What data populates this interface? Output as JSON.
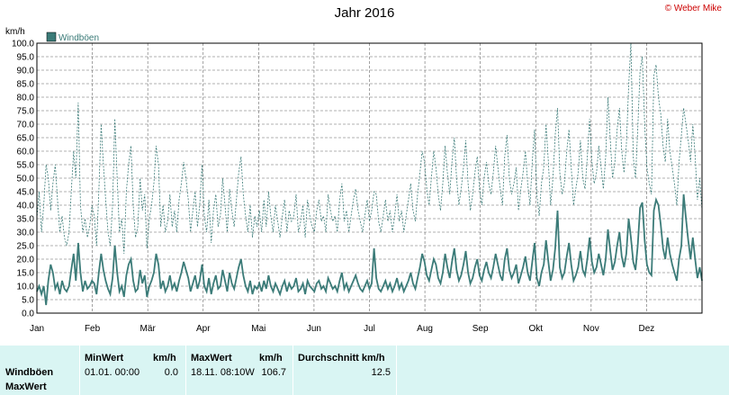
{
  "header": {
    "title": "Jahr 2016",
    "copyright": "© Weber Mike"
  },
  "chart_data": {
    "type": "line",
    "title": "Jahr 2016",
    "ylabel": "km/h",
    "ylim": [
      0,
      100
    ],
    "yticks": [
      "0.0",
      "5.0",
      "10.0",
      "15.0",
      "20.0",
      "25.0",
      "30.0",
      "35.0",
      "40.0",
      "45.0",
      "50.0",
      "55.0",
      "60.0",
      "65.0",
      "70.0",
      "75.0",
      "80.0",
      "85.0",
      "90.0",
      "95.0",
      "100.0"
    ],
    "xlabels": [
      "Jan",
      "Feb",
      "Mär",
      "Apr",
      "Mai",
      "Jun",
      "Jul",
      "Aug",
      "Sep",
      "Okt",
      "Nov",
      "Dez"
    ],
    "grid": true,
    "legend_position": "top-left",
    "series": [
      {
        "name": "Windböen",
        "color": "#3b7b78",
        "style": "solid",
        "values": [
          8,
          10,
          7,
          10,
          3,
          12,
          18,
          15,
          9,
          11,
          7,
          12,
          9,
          8,
          10,
          16,
          22,
          12,
          26,
          15,
          8,
          12,
          9,
          10,
          12,
          11,
          7,
          15,
          22,
          16,
          12,
          9,
          7,
          13,
          25,
          15,
          8,
          10,
          6,
          14,
          18,
          20,
          12,
          8,
          9,
          16,
          11,
          14,
          6,
          10,
          12,
          15,
          22,
          18,
          9,
          12,
          8,
          10,
          14,
          9,
          11,
          8,
          12,
          15,
          19,
          16,
          13,
          8,
          11,
          14,
          9,
          12,
          18,
          10,
          8,
          13,
          7,
          11,
          14,
          9,
          10,
          16,
          12,
          8,
          15,
          11,
          9,
          13,
          17,
          20,
          14,
          10,
          8,
          12,
          7,
          10,
          9,
          11,
          8,
          12,
          9,
          14,
          10,
          8,
          11,
          9,
          7,
          10,
          12,
          8,
          11,
          9,
          10,
          13,
          8,
          9,
          11,
          7,
          12,
          10,
          9,
          8,
          11,
          12,
          9,
          10,
          8,
          13,
          11,
          9,
          10,
          8,
          12,
          15,
          9,
          11,
          8,
          10,
          12,
          14,
          11,
          9,
          8,
          10,
          12,
          9,
          11,
          24,
          13,
          9,
          8,
          10,
          12,
          9,
          11,
          8,
          10,
          13,
          9,
          11,
          8,
          10,
          12,
          15,
          11,
          9,
          13,
          17,
          22,
          19,
          14,
          12,
          16,
          20,
          18,
          13,
          11,
          15,
          22,
          17,
          13,
          19,
          24,
          16,
          12,
          14,
          18,
          23,
          15,
          11,
          13,
          17,
          20,
          14,
          12,
          16,
          19,
          15,
          13,
          17,
          22,
          18,
          14,
          12,
          20,
          24,
          16,
          13,
          15,
          18,
          11,
          14,
          17,
          21,
          15,
          12,
          19,
          26,
          13,
          10,
          15,
          18,
          27,
          19,
          12,
          16,
          24,
          38,
          17,
          13,
          15,
          21,
          26,
          18,
          12,
          14,
          17,
          23,
          16,
          14,
          20,
          28,
          19,
          15,
          17,
          22,
          18,
          14,
          20,
          31,
          23,
          16,
          19,
          25,
          30,
          21,
          17,
          22,
          35,
          28,
          19,
          16,
          25,
          39,
          41,
          27,
          18,
          15,
          14,
          38,
          42,
          40,
          33,
          24,
          20,
          28,
          22,
          18,
          15,
          12,
          20,
          25,
          44,
          35,
          27,
          20,
          28,
          20,
          13,
          17,
          12
        ]
      },
      {
        "name": "MaxWert",
        "color": "#3b7b78",
        "style": "dotted",
        "values": [
          35,
          45,
          30,
          40,
          55,
          50,
          38,
          48,
          55,
          42,
          30,
          36,
          28,
          25,
          30,
          45,
          60,
          50,
          78,
          40,
          30,
          35,
          28,
          32,
          40,
          36,
          25,
          45,
          70,
          55,
          42,
          30,
          25,
          40,
          72,
          50,
          30,
          35,
          22,
          45,
          55,
          62,
          40,
          28,
          32,
          50,
          38,
          44,
          24,
          35,
          40,
          48,
          62,
          55,
          32,
          40,
          30,
          34,
          44,
          32,
          38,
          30,
          42,
          48,
          56,
          50,
          42,
          30,
          38,
          45,
          32,
          40,
          55,
          36,
          30,
          42,
          26,
          38,
          44,
          32,
          36,
          50,
          40,
          30,
          46,
          38,
          32,
          42,
          52,
          58,
          44,
          36,
          30,
          40,
          28,
          36,
          32,
          38,
          30,
          42,
          32,
          45,
          36,
          30,
          40,
          34,
          28,
          36,
          42,
          30,
          38,
          34,
          36,
          44,
          30,
          34,
          40,
          28,
          42,
          36,
          32,
          30,
          38,
          42,
          34,
          36,
          30,
          44,
          38,
          34,
          36,
          30,
          42,
          48,
          34,
          38,
          30,
          36,
          42,
          46,
          38,
          34,
          30,
          36,
          42,
          34,
          38,
          45,
          44,
          34,
          30,
          36,
          42,
          34,
          38,
          30,
          36,
          44,
          34,
          38,
          30,
          36,
          42,
          48,
          38,
          34,
          44,
          52,
          60,
          56,
          46,
          40,
          50,
          60,
          54,
          44,
          38,
          48,
          62,
          52,
          44,
          56,
          65,
          50,
          40,
          46,
          54,
          64,
          48,
          38,
          44,
          52,
          58,
          46,
          40,
          50,
          56,
          48,
          44,
          52,
          62,
          54,
          46,
          40,
          58,
          66,
          50,
          44,
          48,
          54,
          38,
          46,
          52,
          60,
          48,
          40,
          56,
          68,
          44,
          36,
          48,
          54,
          70,
          56,
          40,
          50,
          66,
          76,
          52,
          44,
          48,
          60,
          68,
          54,
          40,
          46,
          52,
          64,
          50,
          46,
          58,
          72,
          56,
          48,
          52,
          62,
          54,
          46,
          58,
          80,
          64,
          50,
          56,
          68,
          76,
          60,
          52,
          62,
          84,
          100,
          58,
          50,
          68,
          90,
          95,
          70,
          54,
          48,
          44,
          88,
          92,
          80,
          74,
          62,
          56,
          72,
          60,
          54,
          48,
          40,
          56,
          66,
          76,
          70,
          64,
          56,
          70,
          58,
          42,
          50,
          38
        ]
      }
    ]
  },
  "stats": {
    "col_minwert": "MinWert",
    "col_minwert_unit": "km/h",
    "col_maxwert": "MaxWert",
    "col_maxwert_unit": "km/h",
    "col_avg": "Durchschnitt km/h",
    "row1_label": "Windböen",
    "row2_label": "MaxWert",
    "min_time": "01.01.  00:00",
    "min_value": "0.0",
    "max_time": "18.11.  08:10W",
    "max_value": "106.7",
    "avg_value": "12.5"
  }
}
